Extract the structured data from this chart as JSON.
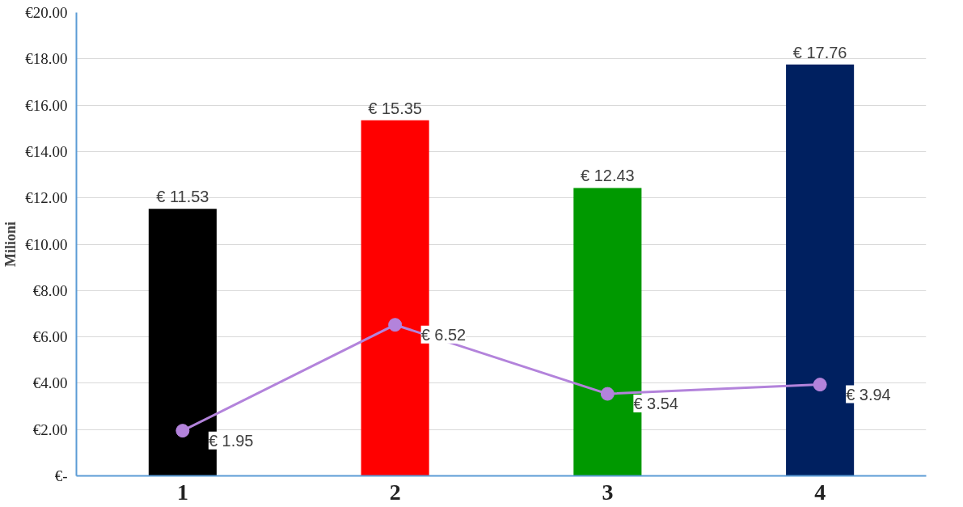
{
  "chart_data": {
    "type": "bar",
    "ylabel": "Milioni",
    "categories": [
      "1",
      "2",
      "3",
      "4"
    ],
    "series": [
      {
        "colors": [
          "#000000",
          "#ff0000",
          "#009900",
          "#002060"
        ],
        "values": [
          11.53,
          15.35,
          12.43,
          17.76
        ],
        "value_labels": [
          "€ 11.53",
          "€ 15.35",
          "€ 12.43",
          "€ 17.76"
        ]
      },
      {
        "type": "line",
        "color": "#b383db",
        "values": [
          1.95,
          6.52,
          3.54,
          3.94
        ],
        "value_labels": [
          "€ 1.95",
          "€ 6.52",
          "€ 3.54",
          "€ 3.94"
        ],
        "marker": "circle"
      }
    ],
    "ylim": [
      0,
      20
    ],
    "yticks": [
      {
        "value": 0,
        "label": "€-"
      },
      {
        "value": 2,
        "label": "€2.00"
      },
      {
        "value": 4,
        "label": "€4.00"
      },
      {
        "value": 6,
        "label": "€6.00"
      },
      {
        "value": 8,
        "label": "€8.00"
      },
      {
        "value": 10,
        "label": "€10.00"
      },
      {
        "value": 12,
        "label": "€12.00"
      },
      {
        "value": 14,
        "label": "€14.00"
      },
      {
        "value": 16,
        "label": "€16.00"
      },
      {
        "value": 18,
        "label": "€18.00"
      },
      {
        "value": 20,
        "label": "€20.00"
      }
    ],
    "grid": "y"
  }
}
